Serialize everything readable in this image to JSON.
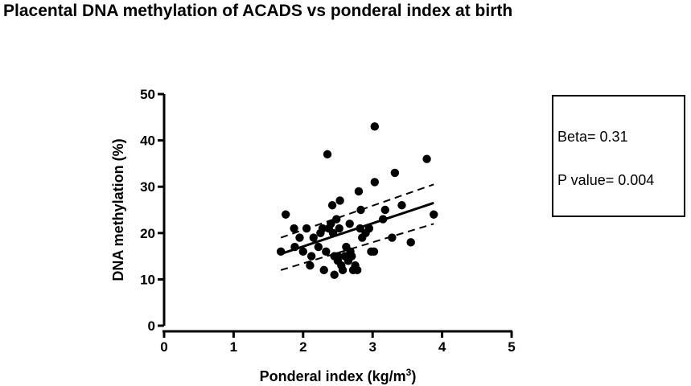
{
  "title": "Placental DNA methylation of ACADS vs ponderal index at birth",
  "stats": {
    "beta": "Beta= 0.31",
    "p_value": "P value= 0.004"
  },
  "chart_data": {
    "type": "scatter",
    "title": "Placental DNA methylation of ACADS vs ponderal index at birth",
    "xlabel": "Ponderal index (kg/m",
    "xlabel_sup": "3",
    "xlabel_end": ")",
    "ylabel": "DNA methylation (%)",
    "xlim": [
      0,
      5
    ],
    "ylim": [
      0,
      50
    ],
    "xticks": [
      "0",
      "1",
      "2",
      "3",
      "4",
      "5"
    ],
    "yticks": [
      "0",
      "10",
      "20",
      "30",
      "40",
      "50"
    ],
    "points": [
      [
        1.68,
        16
      ],
      [
        1.75,
        24
      ],
      [
        1.87,
        21
      ],
      [
        1.88,
        17
      ],
      [
        1.95,
        19
      ],
      [
        2.0,
        16
      ],
      [
        2.05,
        21
      ],
      [
        2.1,
        13
      ],
      [
        2.12,
        15
      ],
      [
        2.15,
        19
      ],
      [
        2.22,
        17
      ],
      [
        2.25,
        20
      ],
      [
        2.28,
        21
      ],
      [
        2.3,
        12
      ],
      [
        2.33,
        16
      ],
      [
        2.35,
        37
      ],
      [
        2.37,
        21
      ],
      [
        2.4,
        22
      ],
      [
        2.42,
        26
      ],
      [
        2.43,
        20
      ],
      [
        2.45,
        15
      ],
      [
        2.45,
        11
      ],
      [
        2.48,
        23
      ],
      [
        2.5,
        15
      ],
      [
        2.5,
        14
      ],
      [
        2.52,
        21
      ],
      [
        2.53,
        27
      ],
      [
        2.55,
        13
      ],
      [
        2.57,
        12
      ],
      [
        2.6,
        15
      ],
      [
        2.62,
        17
      ],
      [
        2.65,
        14
      ],
      [
        2.67,
        22
      ],
      [
        2.68,
        16
      ],
      [
        2.7,
        15
      ],
      [
        2.72,
        12
      ],
      [
        2.75,
        13
      ],
      [
        2.78,
        12
      ],
      [
        2.8,
        29
      ],
      [
        2.82,
        21
      ],
      [
        2.83,
        25
      ],
      [
        2.85,
        19
      ],
      [
        2.9,
        20
      ],
      [
        2.95,
        21
      ],
      [
        2.98,
        16
      ],
      [
        3.02,
        16
      ],
      [
        3.03,
        31
      ],
      [
        3.03,
        43
      ],
      [
        3.15,
        23
      ],
      [
        3.18,
        25
      ],
      [
        3.28,
        19
      ],
      [
        3.32,
        33
      ],
      [
        3.42,
        26
      ],
      [
        3.55,
        18
      ],
      [
        3.78,
        36
      ],
      [
        3.88,
        24
      ]
    ],
    "fit_line": {
      "x": [
        1.68,
        3.88
      ],
      "y": [
        15.5,
        26.5
      ]
    },
    "ci_upper": {
      "x": [
        1.68,
        3.88
      ],
      "y": [
        19,
        30.5
      ]
    },
    "ci_lower": {
      "x": [
        1.68,
        3.88
      ],
      "y": [
        12,
        22
      ]
    }
  }
}
